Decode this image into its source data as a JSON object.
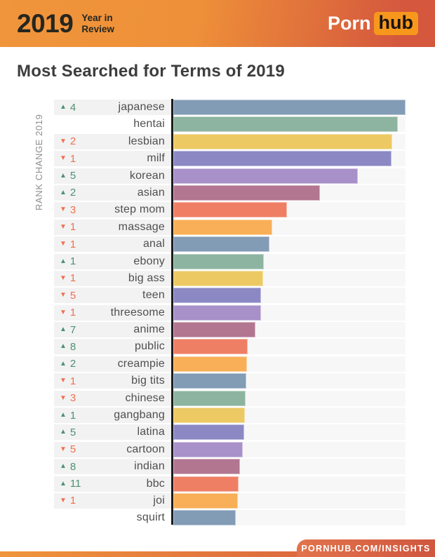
{
  "header": {
    "year": "2019",
    "subtitle_lines": [
      "Year in",
      "Review"
    ],
    "logo_part1": "Porn",
    "logo_part2": "hub"
  },
  "page_title": "Most Searched for Terms of 2019",
  "footer": {
    "label": "PORNHUB.COM/INSIGHTS"
  },
  "colors": {
    "header_gradient_left": "#f0953c",
    "header_gradient_right": "#d4573e",
    "logo_hub_bg": "#f7981d",
    "up_green": "#4d9174",
    "down_red": "#f0704f",
    "axis_line": "#1d1d1d",
    "label_row_bg": "#f2f2f2",
    "bar_row_bg": "#f7f7f7",
    "palette": [
      "#829cb6",
      "#8db4a1",
      "#ecc963",
      "#8b88c4",
      "#a890c9",
      "#b27691",
      "#ef7f64",
      "#f8af57"
    ]
  },
  "chart_data": {
    "type": "bar",
    "orientation": "horizontal",
    "title": "Most Searched for Terms of 2019",
    "y_axis_label": "RANK CHANGE 2019",
    "value_axis_visible": false,
    "values_unit": "relative bar length, % of longest bar (no numeric axis shown in image)",
    "legend": "none",
    "grid": false,
    "categories": [
      "japanese",
      "hentai",
      "lesbian",
      "milf",
      "korean",
      "asian",
      "step mom",
      "massage",
      "anal",
      "ebony",
      "big ass",
      "teen",
      "threesome",
      "anime",
      "public",
      "creampie",
      "big tits",
      "chinese",
      "gangbang",
      "latina",
      "cartoon",
      "indian",
      "bbc",
      "joi",
      "squirt"
    ],
    "values": [
      100,
      96.7,
      94.3,
      94.0,
      79.5,
      63.4,
      49.5,
      43.2,
      42.0,
      39.6,
      39.3,
      38.4,
      38.4,
      36.0,
      32.6,
      32.3,
      32.0,
      31.7,
      31.4,
      31.1,
      30.5,
      29.3,
      28.7,
      28.4,
      27.5
    ],
    "rank_changes": [
      {
        "direction": "up",
        "amount": 4
      },
      null,
      {
        "direction": "down",
        "amount": 2
      },
      {
        "direction": "down",
        "amount": 1
      },
      {
        "direction": "up",
        "amount": 5
      },
      {
        "direction": "up",
        "amount": 2
      },
      {
        "direction": "down",
        "amount": 3
      },
      {
        "direction": "down",
        "amount": 1
      },
      {
        "direction": "down",
        "amount": 1
      },
      {
        "direction": "up",
        "amount": 1
      },
      {
        "direction": "down",
        "amount": 1
      },
      {
        "direction": "down",
        "amount": 5
      },
      {
        "direction": "down",
        "amount": 1
      },
      {
        "direction": "up",
        "amount": 7
      },
      {
        "direction": "up",
        "amount": 8
      },
      {
        "direction": "up",
        "amount": 2
      },
      {
        "direction": "down",
        "amount": 1
      },
      {
        "direction": "down",
        "amount": 3
      },
      {
        "direction": "up",
        "amount": 1
      },
      {
        "direction": "up",
        "amount": 5
      },
      {
        "direction": "down",
        "amount": 5
      },
      {
        "direction": "up",
        "amount": 8
      },
      {
        "direction": "up",
        "amount": 11
      },
      {
        "direction": "down",
        "amount": 1
      },
      null
    ],
    "up_symbol": "▲",
    "down_symbol": "▼"
  }
}
